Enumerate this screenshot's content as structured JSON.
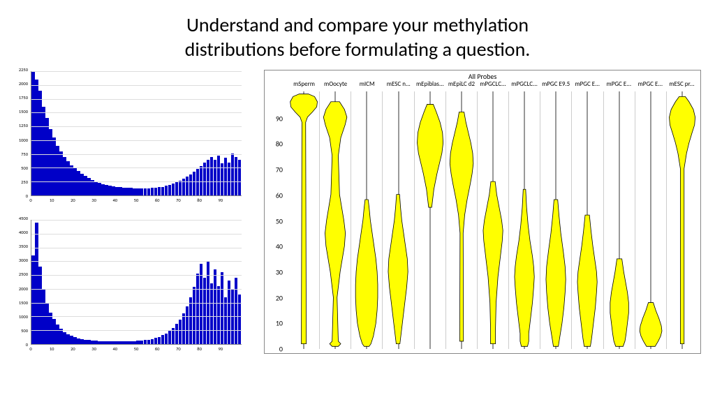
{
  "title_line1": "Understand and compare your methylation",
  "title_line2": "distributions before formulating a question.",
  "histogram_top": {
    "type": "histogram",
    "bar_color": "#0000c8",
    "grid_color": "#dddddd",
    "xlim": [
      0,
      100
    ],
    "xticks": [
      0,
      10,
      20,
      30,
      40,
      50,
      60,
      70,
      80,
      90
    ],
    "ylim": [
      0,
      2250
    ],
    "yticks": [
      0,
      250,
      500,
      750,
      1000,
      1250,
      1500,
      1750,
      2000,
      2250
    ],
    "values": [
      2250,
      2100,
      1900,
      1600,
      1400,
      1200,
      1050,
      900,
      800,
      700,
      620,
      550,
      490,
      440,
      390,
      350,
      310,
      280,
      250,
      225,
      205,
      190,
      175,
      165,
      155,
      148,
      142,
      138,
      134,
      132,
      130,
      130,
      130,
      132,
      135,
      140,
      148,
      158,
      172,
      190,
      212,
      238,
      268,
      302,
      340,
      382,
      428,
      478,
      532,
      590,
      650,
      700,
      640,
      720,
      580,
      680,
      600,
      760,
      700,
      640
    ]
  },
  "histogram_bottom": {
    "type": "histogram",
    "bar_color": "#0000c8",
    "grid_color": "#dddddd",
    "xlim": [
      0,
      100
    ],
    "xticks": [
      0,
      10,
      20,
      30,
      40,
      50,
      60,
      70,
      80,
      90
    ],
    "ylim": [
      0,
      4500
    ],
    "yticks": [
      0,
      500,
      1000,
      1500,
      2000,
      2500,
      3000,
      3500,
      4000,
      4500
    ],
    "values": [
      3200,
      4400,
      2800,
      2000,
      1500,
      1150,
      900,
      700,
      550,
      440,
      360,
      300,
      250,
      215,
      185,
      160,
      140,
      125,
      115,
      108,
      103,
      100,
      98,
      97,
      96,
      96,
      97,
      99,
      102,
      107,
      115,
      126,
      141,
      161,
      187,
      221,
      264,
      319,
      389,
      477,
      587,
      725,
      896,
      1106,
      1365,
      1685,
      2079,
      2565,
      2900,
      2400,
      3000,
      2200,
      2700,
      2100,
      2600,
      1700,
      2300,
      2000,
      2400,
      1800
    ]
  },
  "violin": {
    "type": "violin",
    "title": "All Probes",
    "fill_color": "#ffff00",
    "stroke_color": "#000000",
    "grid_color": "#cccccc",
    "ylim": [
      0,
      100
    ],
    "yticks": [
      0,
      10,
      20,
      30,
      40,
      50,
      60,
      70,
      80,
      90
    ],
    "axis_fontsize": 10,
    "categories": [
      "mSperm",
      "mOocyte",
      "mICM",
      "mESC n...",
      "mEpiblas...",
      "mEpiLC d2",
      "mPGCLC...",
      "mPGCLC...",
      "mPGC E9.5",
      "mPGC E...",
      "mPGC E...",
      "mPGC E...",
      "mESC pr..."
    ],
    "shapes": [
      [
        [
          2,
          0.08
        ],
        [
          88,
          0.06
        ],
        [
          90,
          0.12
        ],
        [
          92,
          0.28
        ],
        [
          94,
          0.42
        ],
        [
          96,
          0.44
        ],
        [
          98,
          0.35
        ],
        [
          99,
          0.15
        ]
      ],
      [
        [
          1,
          0.1
        ],
        [
          2,
          0.18
        ],
        [
          3,
          0.1
        ],
        [
          20,
          0.06
        ],
        [
          30,
          0.16
        ],
        [
          40,
          0.3
        ],
        [
          45,
          0.33
        ],
        [
          50,
          0.28
        ],
        [
          60,
          0.14
        ],
        [
          75,
          0.1
        ],
        [
          82,
          0.18
        ],
        [
          87,
          0.32
        ],
        [
          90,
          0.38
        ],
        [
          93,
          0.3
        ],
        [
          96,
          0.14
        ]
      ],
      [
        [
          1,
          0.08
        ],
        [
          2,
          0.14
        ],
        [
          5,
          0.22
        ],
        [
          10,
          0.3
        ],
        [
          15,
          0.34
        ],
        [
          20,
          0.36
        ],
        [
          25,
          0.36
        ],
        [
          30,
          0.34
        ],
        [
          35,
          0.3
        ],
        [
          40,
          0.24
        ],
        [
          45,
          0.18
        ],
        [
          50,
          0.12
        ],
        [
          55,
          0.08
        ],
        [
          58,
          0.05
        ]
      ],
      [
        [
          2,
          0.06
        ],
        [
          6,
          0.1
        ],
        [
          12,
          0.16
        ],
        [
          18,
          0.22
        ],
        [
          24,
          0.28
        ],
        [
          30,
          0.32
        ],
        [
          35,
          0.3
        ],
        [
          40,
          0.24
        ],
        [
          45,
          0.18
        ],
        [
          50,
          0.12
        ],
        [
          55,
          0.08
        ],
        [
          60,
          0.05
        ]
      ],
      [
        [
          55,
          0.05
        ],
        [
          62,
          0.12
        ],
        [
          68,
          0.22
        ],
        [
          72,
          0.3
        ],
        [
          76,
          0.38
        ],
        [
          80,
          0.42
        ],
        [
          84,
          0.4
        ],
        [
          88,
          0.32
        ],
        [
          92,
          0.2
        ],
        [
          95,
          0.1
        ]
      ],
      [
        [
          3,
          0.06
        ],
        [
          45,
          0.05
        ],
        [
          52,
          0.1
        ],
        [
          58,
          0.18
        ],
        [
          64,
          0.28
        ],
        [
          68,
          0.34
        ],
        [
          72,
          0.38
        ],
        [
          76,
          0.36
        ],
        [
          80,
          0.3
        ],
        [
          84,
          0.22
        ],
        [
          88,
          0.14
        ],
        [
          92,
          0.08
        ]
      ],
      [
        [
          2,
          0.08
        ],
        [
          8,
          0.08
        ],
        [
          18,
          0.1
        ],
        [
          28,
          0.16
        ],
        [
          36,
          0.24
        ],
        [
          42,
          0.3
        ],
        [
          46,
          0.32
        ],
        [
          50,
          0.28
        ],
        [
          55,
          0.2
        ],
        [
          60,
          0.12
        ],
        [
          65,
          0.07
        ]
      ],
      [
        [
          1,
          0.1
        ],
        [
          3,
          0.14
        ],
        [
          6,
          0.14
        ],
        [
          12,
          0.2
        ],
        [
          18,
          0.26
        ],
        [
          24,
          0.3
        ],
        [
          28,
          0.32
        ],
        [
          32,
          0.3
        ],
        [
          36,
          0.26
        ],
        [
          42,
          0.18
        ],
        [
          48,
          0.12
        ],
        [
          55,
          0.07
        ],
        [
          62,
          0.04
        ]
      ],
      [
        [
          1,
          0.08
        ],
        [
          4,
          0.12
        ],
        [
          10,
          0.2
        ],
        [
          16,
          0.26
        ],
        [
          22,
          0.3
        ],
        [
          27,
          0.32
        ],
        [
          32,
          0.3
        ],
        [
          38,
          0.24
        ],
        [
          45,
          0.16
        ],
        [
          52,
          0.1
        ],
        [
          58,
          0.06
        ]
      ],
      [
        [
          1,
          0.1
        ],
        [
          4,
          0.14
        ],
        [
          10,
          0.2
        ],
        [
          16,
          0.26
        ],
        [
          22,
          0.3
        ],
        [
          26,
          0.32
        ],
        [
          30,
          0.3
        ],
        [
          35,
          0.24
        ],
        [
          40,
          0.18
        ],
        [
          46,
          0.12
        ],
        [
          52,
          0.07
        ]
      ],
      [
        [
          1,
          0.12
        ],
        [
          3,
          0.18
        ],
        [
          6,
          0.22
        ],
        [
          10,
          0.26
        ],
        [
          14,
          0.3
        ],
        [
          18,
          0.3
        ],
        [
          22,
          0.26
        ],
        [
          26,
          0.2
        ],
        [
          30,
          0.14
        ],
        [
          35,
          0.08
        ]
      ],
      [
        [
          1,
          0.14
        ],
        [
          3,
          0.24
        ],
        [
          5,
          0.32
        ],
        [
          7,
          0.36
        ],
        [
          9,
          0.34
        ],
        [
          12,
          0.26
        ],
        [
          15,
          0.16
        ],
        [
          18,
          0.08
        ]
      ],
      [
        [
          2,
          0.06
        ],
        [
          70,
          0.06
        ],
        [
          76,
          0.14
        ],
        [
          80,
          0.22
        ],
        [
          84,
          0.32
        ],
        [
          87,
          0.4
        ],
        [
          90,
          0.42
        ],
        [
          93,
          0.36
        ],
        [
          96,
          0.22
        ],
        [
          98,
          0.1
        ]
      ]
    ]
  }
}
